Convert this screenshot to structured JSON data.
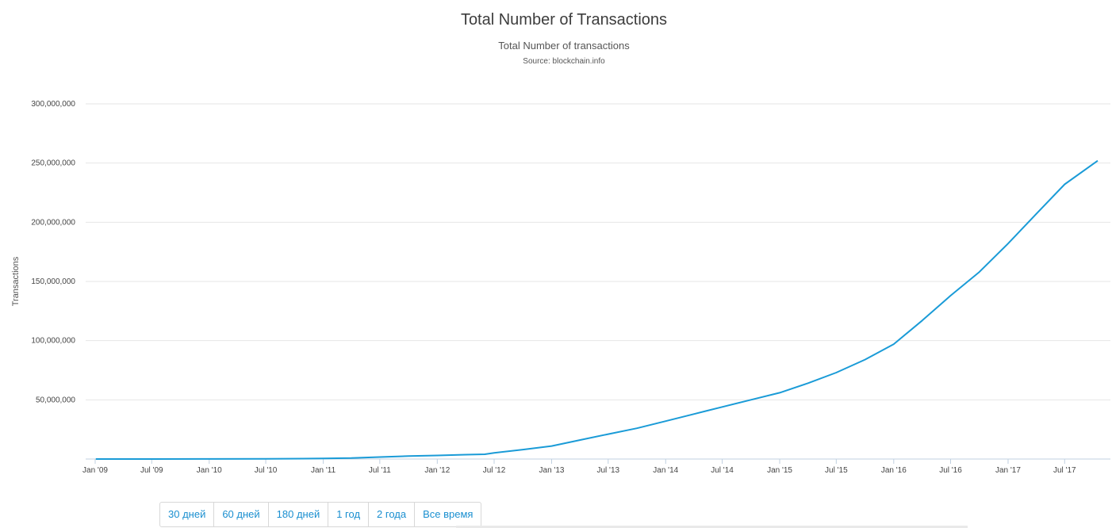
{
  "chart_data": {
    "type": "line",
    "title": "Total Number of Transactions",
    "subtitle": "Total Number of transactions",
    "source": "Source: blockchain.info",
    "ylabel": "Transactions",
    "ylim": [
      0,
      300000000
    ],
    "yticks": [
      50000000,
      100000000,
      150000000,
      200000000,
      250000000,
      300000000
    ],
    "ytick_labels": [
      "50,000,000",
      "100,000,000",
      "150,000,000",
      "200,000,000",
      "250,000,000",
      "300,000,000"
    ],
    "xlim": [
      "2009-01-01",
      "2017-10-20"
    ],
    "xticks": [
      "2009-01-01",
      "2009-07-01",
      "2010-01-01",
      "2010-07-01",
      "2011-01-01",
      "2011-07-01",
      "2012-01-01",
      "2012-07-01",
      "2013-01-01",
      "2013-07-01",
      "2014-01-01",
      "2014-07-01",
      "2015-01-01",
      "2015-07-01",
      "2016-01-01",
      "2016-07-01",
      "2017-01-01",
      "2017-07-01"
    ],
    "xtick_labels": [
      "Jan '09",
      "Jul '09",
      "Jan '10",
      "Jul '10",
      "Jan '11",
      "Jul '11",
      "Jan '12",
      "Jul '12",
      "Jan '13",
      "Jul '13",
      "Jan '14",
      "Jul '14",
      "Jan '15",
      "Jul '15",
      "Jan '16",
      "Jul '16",
      "Jan '17",
      "Jul '17"
    ],
    "grid": true,
    "line_color": "#1a9bd7",
    "series": [
      {
        "name": "",
        "x": [
          "2009-01-03",
          "2009-07-01",
          "2010-01-01",
          "2010-07-01",
          "2011-01-01",
          "2011-04-01",
          "2011-07-01",
          "2011-10-01",
          "2012-01-01",
          "2012-04-01",
          "2012-06-01",
          "2012-07-01",
          "2012-10-01",
          "2013-01-01",
          "2013-04-01",
          "2013-07-01",
          "2013-10-01",
          "2014-01-01",
          "2014-04-01",
          "2014-07-01",
          "2014-10-01",
          "2015-01-01",
          "2015-04-01",
          "2015-07-01",
          "2015-10-01",
          "2016-01-01",
          "2016-04-01",
          "2016-07-01",
          "2016-10-01",
          "2017-01-01",
          "2017-04-01",
          "2017-07-01",
          "2017-10-15"
        ],
        "y": [
          0,
          30000,
          80000,
          200000,
          450000,
          800000,
          1700000,
          2500000,
          3000000,
          3700000,
          4000000,
          5200000,
          8000000,
          11000000,
          16000000,
          21000000,
          26000000,
          32000000,
          38000000,
          44000000,
          50000000,
          56000000,
          64000000,
          73000000,
          84000000,
          97000000,
          117000000,
          138000000,
          158000000,
          182000000,
          207000000,
          232000000,
          252000000
        ]
      }
    ]
  },
  "range_buttons": [
    "30 дней",
    "60 дней",
    "180 дней",
    "1 год",
    "2 года",
    "Все время"
  ]
}
